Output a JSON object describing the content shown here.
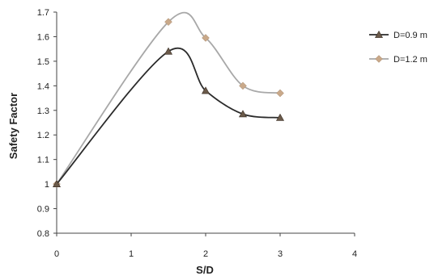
{
  "chart_data": {
    "type": "line",
    "title": "",
    "xlabel": "S/D",
    "ylabel": "Safety Factor",
    "xlim": [
      0,
      4
    ],
    "ylim": [
      0.8,
      1.7
    ],
    "xticks": [
      "0",
      "1",
      "2",
      "3",
      "4"
    ],
    "yticks": [
      "0.8",
      "0.9",
      "1",
      "1.1",
      "1.2",
      "1.3",
      "1.4",
      "1.5",
      "1.6",
      "1.7"
    ],
    "grid": false,
    "smooth": true,
    "legend_position": "right",
    "series": [
      {
        "name": "D=0.9 m",
        "marker": "triangle",
        "line_color": "#2b2b2b",
        "marker_color": "#6b5a4a",
        "x": [
          0,
          1.5,
          2,
          2.5,
          3
        ],
        "y": [
          1.0,
          1.54,
          1.38,
          1.285,
          1.27
        ]
      },
      {
        "name": "D=1.2 m",
        "marker": "diamond",
        "line_color": "#a8a8a8",
        "marker_color": "#c9a98a",
        "x": [
          0,
          1.5,
          2,
          2.5,
          3
        ],
        "y": [
          1.0,
          1.66,
          1.595,
          1.4,
          1.37
        ]
      }
    ]
  }
}
